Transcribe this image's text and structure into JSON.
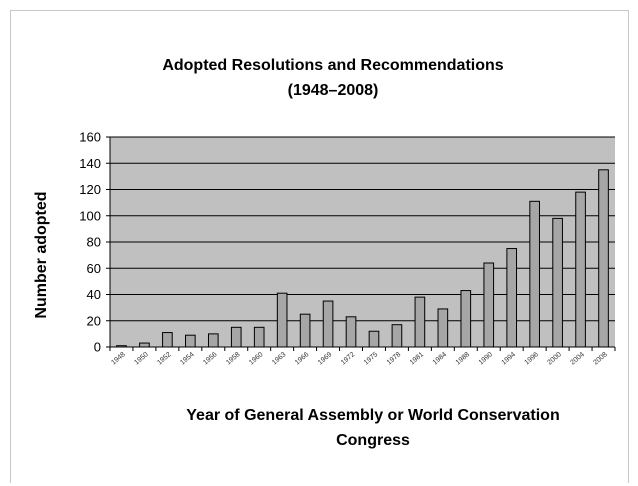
{
  "chart_data": {
    "type": "bar",
    "title": [
      "Adopted Resolutions and Recommendations",
      "(1948–2008)"
    ],
    "xlabel": [
      "Year of General Assembly or World Conservation",
      "Congress"
    ],
    "ylabel": "Number adopted",
    "ylim": [
      0,
      160
    ],
    "yticks": [
      0,
      20,
      40,
      60,
      80,
      100,
      120,
      140,
      160
    ],
    "grid": true,
    "legend": "none",
    "colors": {
      "plot_bg": "#c0c0c0",
      "bar": "#a6a6a6",
      "bar_edge": "#000000",
      "grid": "#000000"
    },
    "categories": [
      "1948",
      "1950",
      "1952",
      "1954",
      "1956",
      "1958",
      "1960",
      "1963",
      "1966",
      "1969",
      "1972",
      "1975",
      "1978",
      "1981",
      "1984",
      "1988",
      "1990",
      "1994",
      "1996",
      "2000",
      "2004",
      "2008"
    ],
    "values": [
      1,
      3,
      11,
      9,
      10,
      15,
      15,
      41,
      25,
      35,
      23,
      12,
      17,
      38,
      29,
      43,
      64,
      75,
      111,
      98,
      118,
      135
    ]
  }
}
